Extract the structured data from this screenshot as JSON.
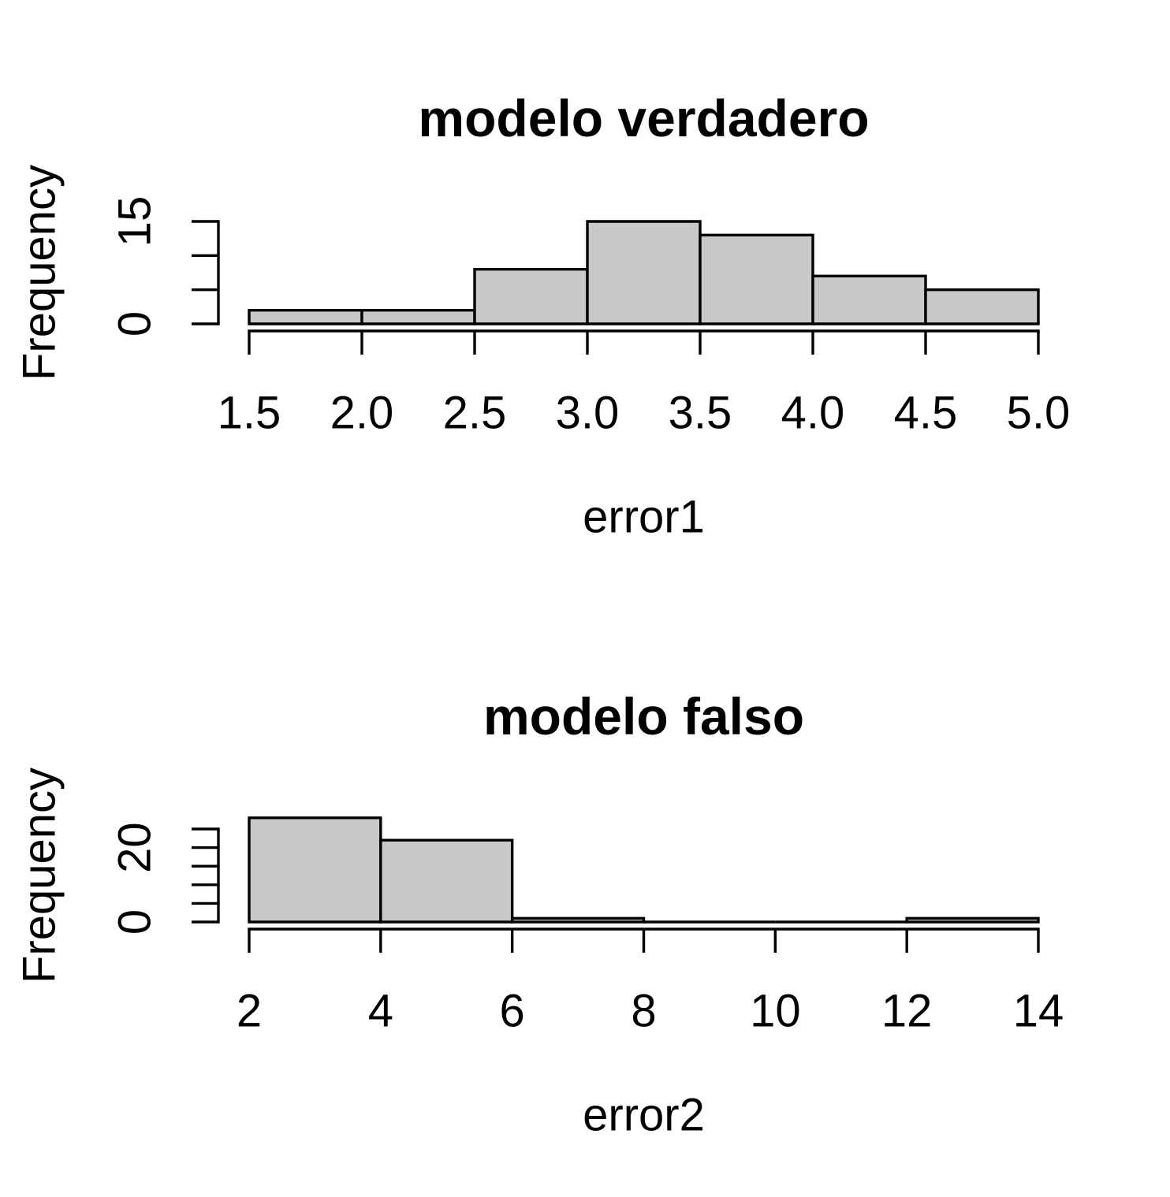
{
  "figure": {
    "background": "#ffffff",
    "description": "Two stacked base-R style histograms"
  },
  "style": {
    "bar_fill": "#c9c9c9",
    "bar_stroke": "#000000",
    "axis_color": "#000000",
    "text_color": "#000000"
  },
  "chart_data": [
    {
      "type": "bar",
      "subtype": "histogram",
      "title": "modelo verdadero",
      "xlabel": "error1",
      "ylabel": "Frequency",
      "bin_edges": [
        1.5,
        2.0,
        2.5,
        3.0,
        3.5,
        4.0,
        4.5,
        5.0
      ],
      "counts": [
        2,
        2,
        8,
        15,
        13,
        7,
        5
      ],
      "xlim": [
        1.5,
        5.0
      ],
      "ylim": [
        0,
        15
      ],
      "grid": false,
      "legend": null,
      "x_ticks": [
        {
          "value": 1.5,
          "label": "1.5"
        },
        {
          "value": 2.0,
          "label": "2.0"
        },
        {
          "value": 2.5,
          "label": "2.5"
        },
        {
          "value": 3.0,
          "label": "3.0"
        },
        {
          "value": 3.5,
          "label": "3.5"
        },
        {
          "value": 4.0,
          "label": "4.0"
        },
        {
          "value": 4.5,
          "label": "4.5"
        },
        {
          "value": 5.0,
          "label": "5.0"
        }
      ],
      "y_ticks": [
        {
          "value": 0,
          "label": "0"
        },
        {
          "value": 5,
          "label": ""
        },
        {
          "value": 10,
          "label": ""
        },
        {
          "value": 15,
          "label": "15"
        }
      ]
    },
    {
      "type": "bar",
      "subtype": "histogram",
      "title": "modelo falso",
      "xlabel": "error2",
      "ylabel": "Frequency",
      "bin_edges": [
        2,
        4,
        6,
        8,
        10,
        12,
        14
      ],
      "counts": [
        28,
        22,
        1,
        0,
        0,
        1
      ],
      "xlim": [
        2,
        14
      ],
      "ylim": [
        0,
        25
      ],
      "grid": false,
      "legend": null,
      "x_ticks": [
        {
          "value": 2,
          "label": "2"
        },
        {
          "value": 4,
          "label": "4"
        },
        {
          "value": 6,
          "label": "6"
        },
        {
          "value": 8,
          "label": "8"
        },
        {
          "value": 10,
          "label": "10"
        },
        {
          "value": 12,
          "label": "12"
        },
        {
          "value": 14,
          "label": "14"
        }
      ],
      "y_ticks": [
        {
          "value": 0,
          "label": "0"
        },
        {
          "value": 5,
          "label": ""
        },
        {
          "value": 10,
          "label": ""
        },
        {
          "value": 15,
          "label": ""
        },
        {
          "value": 20,
          "label": "20"
        },
        {
          "value": 25,
          "label": ""
        }
      ]
    }
  ]
}
